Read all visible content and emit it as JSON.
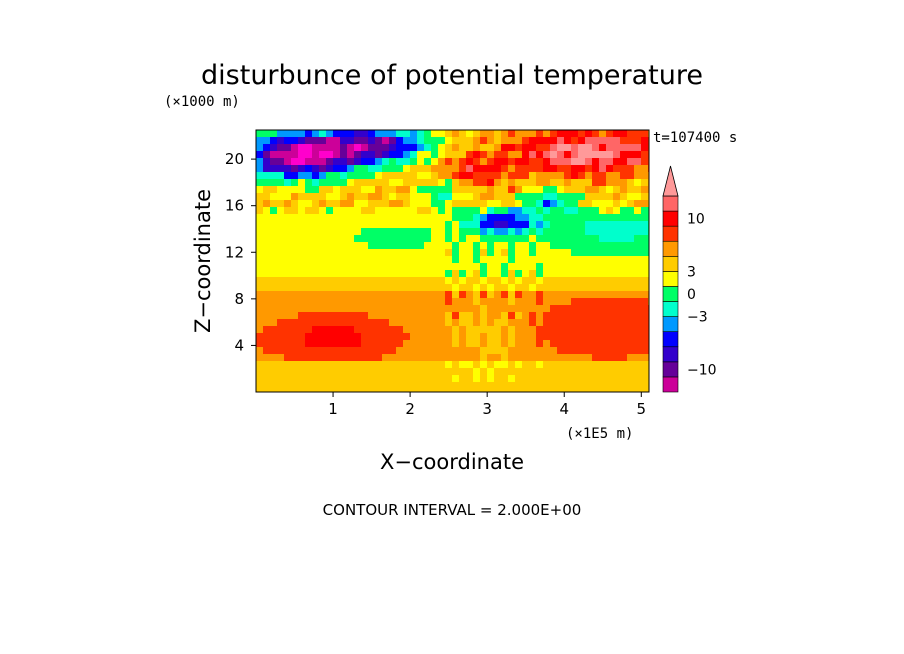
{
  "chart_data": {
    "type": "heatmap",
    "title": "disturbunce of potential temperature",
    "y_unit": "(×1000 m)",
    "x_unit": "(×1E5 m)",
    "xlabel": "X−coordinate",
    "ylabel": "Z−coordinate",
    "time_label": "t=107400 s",
    "contour_note": "CONTOUR INTERVAL = 2.000E+00",
    "xlim": [
      0,
      5.1
    ],
    "ylim": [
      0,
      22.5
    ],
    "x_ticks": [
      1,
      2,
      3,
      4,
      5
    ],
    "y_ticks": [
      4,
      8,
      12,
      16,
      20
    ],
    "colorbar": {
      "levels": [
        -13,
        -11,
        -9,
        -7,
        -5,
        -3,
        -1,
        1,
        3,
        5,
        7,
        9,
        11,
        13
      ],
      "tick_values": [
        10,
        3,
        0,
        -3,
        -10
      ],
      "tick_labels": [
        "10",
        "3",
        "0",
        "−3",
        "−10"
      ],
      "colors": [
        "#ff00cc",
        "#cc0099",
        "#660099",
        "#3300cc",
        "#0000ff",
        "#0099ff",
        "#00ffcc",
        "#00ff66",
        "#ffff00",
        "#ffcc00",
        "#ff9900",
        "#ff3300",
        "#ff0000",
        "#ff6666",
        "#ff9999"
      ]
    },
    "features": [
      {
        "x": 0.5,
        "z": 20.0,
        "value": -10
      },
      {
        "x": 1.5,
        "z": 21.0,
        "value": -8
      },
      {
        "x": 4.3,
        "z": 20.5,
        "value": 10
      },
      {
        "x": 2.8,
        "z": 19.0,
        "value": 7
      },
      {
        "x": 1.0,
        "z": 4.5,
        "value": 9
      },
      {
        "x": 3.2,
        "z": 14.5,
        "value": -6
      },
      {
        "x": 3.0,
        "z": 11.0,
        "value": 2
      },
      {
        "x": 4.5,
        "z": 5.5,
        "value": 5
      },
      {
        "x": 4.5,
        "z": 14.0,
        "value": -1
      }
    ]
  }
}
